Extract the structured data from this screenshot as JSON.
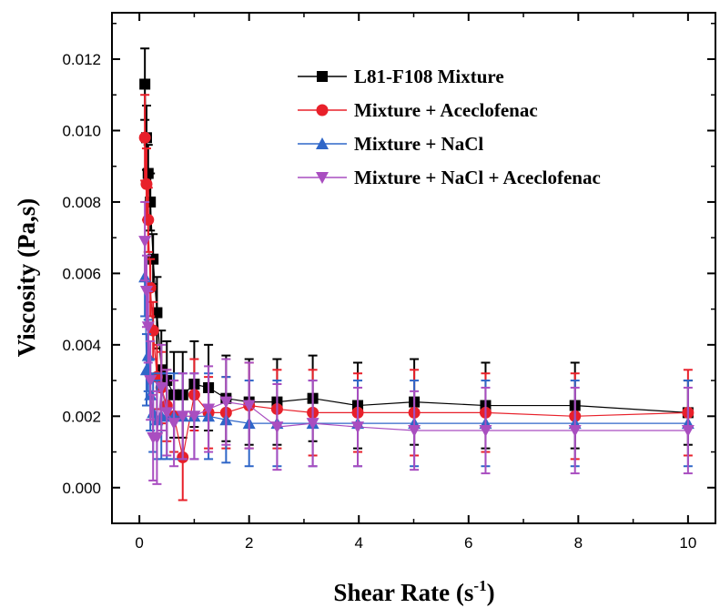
{
  "chart_data": {
    "type": "line",
    "xlabel": "Shear Rate (s",
    "xlabel_sup": "-1",
    "xlabel_tail": ")",
    "ylabel": "Viscosity (Pa,s)",
    "xlim": [
      -0.5,
      10.5
    ],
    "ylim": [
      -0.001,
      0.0133
    ],
    "xticks": [
      0,
      2,
      4,
      6,
      8,
      10
    ],
    "xtick_labels": [
      "0",
      "2",
      "4",
      "6",
      "8",
      "10"
    ],
    "yticks": [
      0.0,
      0.002,
      0.004,
      0.006,
      0.008,
      0.01,
      0.012
    ],
    "ytick_labels": [
      "0.000",
      "0.002",
      "0.004",
      "0.006",
      "0.008",
      "0.010",
      "0.012"
    ],
    "grid": false,
    "legend_position": "top-right",
    "series": [
      {
        "name": "L81-F108 Mixture",
        "color": "#000000",
        "marker": "square",
        "x": [
          0.1,
          0.13,
          0.16,
          0.2,
          0.25,
          0.32,
          0.4,
          0.5,
          0.63,
          0.79,
          1.0,
          1.26,
          1.58,
          2.0,
          2.51,
          3.16,
          3.98,
          5.01,
          6.31,
          7.94,
          10.0
        ],
        "y": [
          0.0113,
          0.0098,
          0.0088,
          0.008,
          0.0064,
          0.0049,
          0.0033,
          0.003,
          0.0026,
          0.0026,
          0.0029,
          0.0028,
          0.0025,
          0.0024,
          0.0024,
          0.0025,
          0.0023,
          0.0024,
          0.0023,
          0.0023,
          0.0021
        ],
        "err": [
          0.001,
          0.0009,
          0.0008,
          0.0008,
          0.0007,
          0.001,
          0.0011,
          0.0011,
          0.0012,
          0.0012,
          0.0012,
          0.0012,
          0.0012,
          0.0012,
          0.0012,
          0.0012,
          0.0012,
          0.0012,
          0.0012,
          0.0012,
          0.0009
        ]
      },
      {
        "name": "Mixture + Aceclofenac",
        "color": "#e8202a",
        "marker": "circle",
        "x": [
          0.1,
          0.13,
          0.16,
          0.2,
          0.25,
          0.32,
          0.4,
          0.5,
          0.63,
          0.79,
          1.0,
          1.26,
          1.58,
          2.0,
          2.51,
          3.16,
          3.98,
          5.01,
          6.31,
          7.94,
          10.0
        ],
        "y": [
          0.0098,
          0.0085,
          0.0075,
          0.0056,
          0.0044,
          0.0031,
          0.0028,
          0.0023,
          0.002,
          0.00085,
          0.0026,
          0.0021,
          0.0021,
          0.0023,
          0.0022,
          0.0021,
          0.0021,
          0.0021,
          0.0021,
          0.002,
          0.0021
        ],
        "err": [
          0.0012,
          0.001,
          0.0009,
          0.0008,
          0.0008,
          0.0009,
          0.001,
          0.001,
          0.001,
          0.0012,
          0.001,
          0.001,
          0.001,
          0.0012,
          0.0011,
          0.0012,
          0.0011,
          0.0012,
          0.0011,
          0.0012,
          0.0012
        ]
      },
      {
        "name": "Mixture + NaCl",
        "color": "#2f66c8",
        "marker": "triangle-up",
        "x": [
          0.1,
          0.13,
          0.16,
          0.2,
          0.25,
          0.32,
          0.4,
          0.5,
          0.63,
          0.79,
          1.0,
          1.26,
          1.58,
          2.0,
          2.51,
          3.16,
          3.98,
          5.01,
          6.31,
          7.94,
          10.0
        ],
        "y": [
          0.0059,
          0.0033,
          0.0037,
          0.0026,
          0.0021,
          0.0019,
          0.002,
          0.002,
          0.002,
          0.002,
          0.002,
          0.002,
          0.0019,
          0.0018,
          0.0018,
          0.0018,
          0.0018,
          0.0018,
          0.0018,
          0.0018,
          0.0018
        ],
        "err": [
          0.0011,
          0.001,
          0.001,
          0.001,
          0.0011,
          0.0011,
          0.0012,
          0.0012,
          0.0012,
          0.0012,
          0.0012,
          0.0012,
          0.0012,
          0.0012,
          0.0012,
          0.0012,
          0.0012,
          0.0012,
          0.0012,
          0.0012,
          0.0012
        ]
      },
      {
        "name": "Mixture + NaCl + Aceclofenac",
        "color": "#a94ec0",
        "marker": "triangle-down",
        "x": [
          0.1,
          0.13,
          0.16,
          0.2,
          0.25,
          0.32,
          0.4,
          0.5,
          0.63,
          0.79,
          1.0,
          1.26,
          1.58,
          2.0,
          2.51,
          3.16,
          3.98,
          5.01,
          6.31,
          7.94,
          10.0
        ],
        "y": [
          0.0069,
          0.0055,
          0.0045,
          0.003,
          0.0014,
          0.0014,
          0.0028,
          0.0021,
          0.0018,
          0.002,
          0.002,
          0.0022,
          0.0024,
          0.0023,
          0.0017,
          0.0018,
          0.0017,
          0.0016,
          0.0016,
          0.0016,
          0.0016
        ],
        "err": [
          0.0011,
          0.001,
          0.001,
          0.0011,
          0.0012,
          0.0013,
          0.0012,
          0.0012,
          0.0012,
          0.0012,
          0.0012,
          0.0012,
          0.0012,
          0.0012,
          0.0012,
          0.0012,
          0.0011,
          0.0011,
          0.0012,
          0.0012,
          0.0012
        ]
      }
    ]
  }
}
